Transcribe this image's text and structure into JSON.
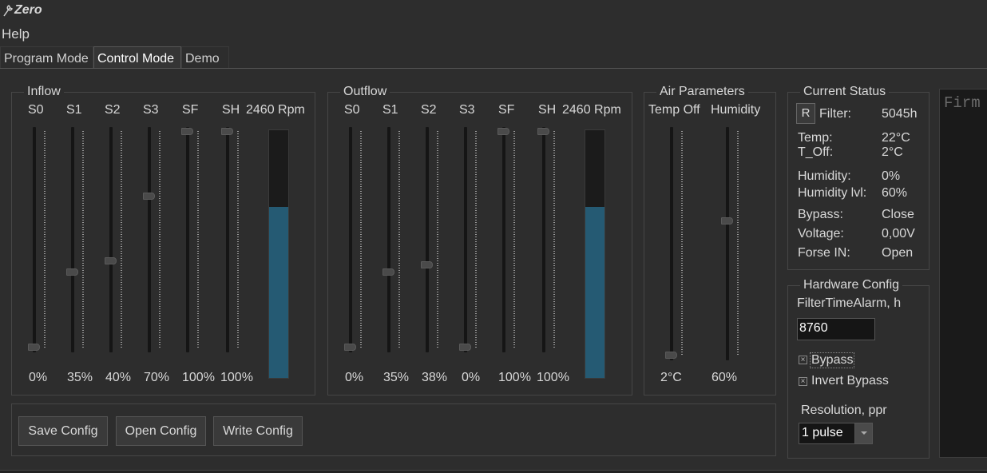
{
  "app": {
    "title": "Zero"
  },
  "menu": {
    "help": "Help"
  },
  "tabs": [
    "Program Mode",
    "Control Mode",
    "Demo"
  ],
  "inflow": {
    "title": "Inflow",
    "labels": [
      "S0",
      "S1",
      "S2",
      "S3",
      "SF",
      "SH"
    ],
    "rpm": "2460 Rpm",
    "values": [
      "0%",
      "35%",
      "40%",
      "70%",
      "100%",
      "100%"
    ],
    "levels": [
      0,
      35,
      40,
      70,
      100,
      100
    ],
    "bar_level": 69
  },
  "outflow": {
    "title": "Outflow",
    "labels": [
      "S0",
      "S1",
      "S2",
      "S3",
      "SF",
      "SH"
    ],
    "rpm": "2460 Rpm",
    "values": [
      "0%",
      "35%",
      "38%",
      "0%",
      "100%",
      "100%"
    ],
    "levels": [
      0,
      35,
      38,
      0,
      100,
      100
    ],
    "bar_level": 69
  },
  "air": {
    "title": "Air Parameters",
    "labels": [
      "Temp Off",
      "Humidity"
    ],
    "values": [
      "2°C",
      "60%"
    ],
    "levels": [
      0,
      60
    ]
  },
  "status": {
    "title": "Current Status",
    "reset_label": "R",
    "rows": [
      {
        "label": "Filter:",
        "value": "5045h"
      },
      {
        "label": "Temp:",
        "value": "22°C"
      },
      {
        "label": "T_Off:",
        "value": "2°C"
      },
      {
        "label": "Humidity:",
        "value": "0%"
      },
      {
        "label": "Humidity lvl:",
        "value": "60%"
      },
      {
        "label": "Bypass:",
        "value": "Close"
      },
      {
        "label": "Voltage:",
        "value": "0,00V"
      },
      {
        "label": "Forse IN:",
        "value": "Open"
      }
    ]
  },
  "hardware": {
    "title": "Hardware Config",
    "filter_label": "FilterTimeAlarm, h",
    "filter_value": "8760",
    "check_mark": "×",
    "bypass_label": "Bypass",
    "bypass_checked": true,
    "invert_label": "Invert Bypass",
    "invert_checked": true,
    "resolution_label": "Resolution, ppr",
    "resolution_value": "1 pulse"
  },
  "buttons": {
    "save": "Save Config",
    "open": "Open Config",
    "write": "Write Config"
  },
  "firmware": {
    "text": "Firm"
  }
}
